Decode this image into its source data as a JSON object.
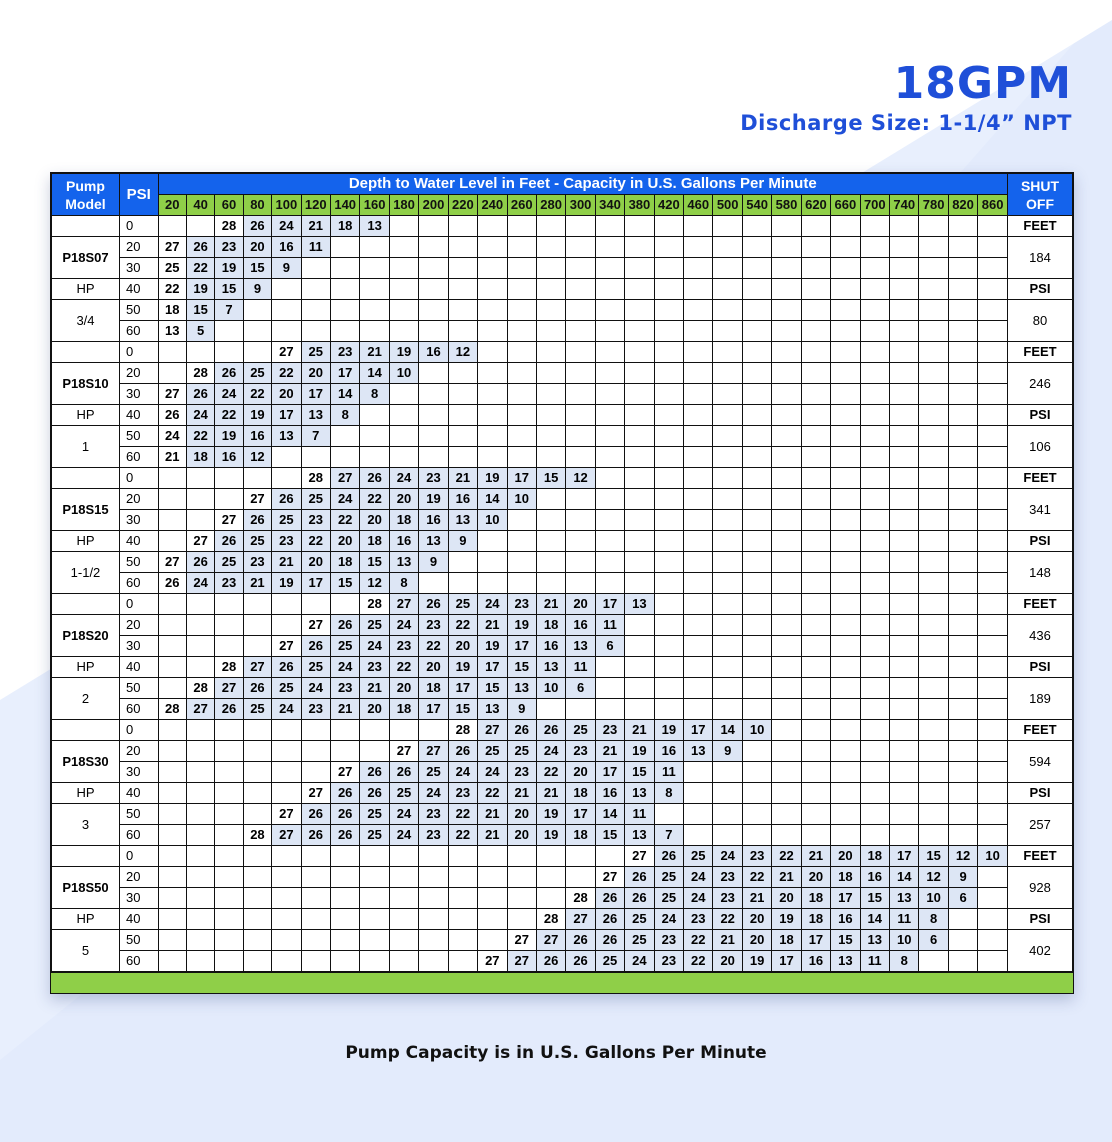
{
  "title": "18GPM",
  "subtitle": "Discharge Size: 1-1/4” NPT",
  "caption": "Pump Capacity is in U.S. Gallons Per Minute",
  "colors": {
    "header_blue": "#1463ec",
    "header_green": "#8fcf48",
    "title_blue": "#1f4fd8",
    "cell_fill": "#dde6f5"
  },
  "header": {
    "model_label": "Pump Model",
    "psi_label": "PSI",
    "depth_label": "Depth to Water Level in Feet - Capacity in U.S. Gallons Per Minute",
    "shut_label": "SHUT OFF",
    "depths": [
      "20",
      "40",
      "60",
      "80",
      "100",
      "120",
      "140",
      "160",
      "180",
      "200",
      "220",
      "240",
      "260",
      "280",
      "300",
      "340",
      "380",
      "420",
      "460",
      "500",
      "540",
      "580",
      "620",
      "660",
      "700",
      "740",
      "780",
      "820",
      "860"
    ]
  },
  "pumps": [
    {
      "model": "P18S07",
      "hp_label": "HP",
      "hp": "3/4",
      "shut": {
        "feet_label": "FEET",
        "feet": "184",
        "psi_label": "PSI",
        "psi": "80"
      },
      "rows": [
        {
          "psi": "0",
          "start": 2,
          "values": [
            "28",
            "26",
            "24",
            "21",
            "18",
            "13"
          ]
        },
        {
          "psi": "20",
          "start": 0,
          "values": [
            "27",
            "26",
            "23",
            "20",
            "16",
            "11"
          ]
        },
        {
          "psi": "30",
          "start": 0,
          "values": [
            "25",
            "22",
            "19",
            "15",
            "9"
          ]
        },
        {
          "psi": "40",
          "start": 0,
          "values": [
            "22",
            "19",
            "15",
            "9"
          ]
        },
        {
          "psi": "50",
          "start": 0,
          "values": [
            "18",
            "15",
            "7"
          ]
        },
        {
          "psi": "60",
          "start": 0,
          "values": [
            "13",
            "5"
          ]
        }
      ]
    },
    {
      "model": "P18S10",
      "hp_label": "HP",
      "hp": "1",
      "shut": {
        "feet_label": "FEET",
        "feet": "246",
        "psi_label": "PSI",
        "psi": "106"
      },
      "rows": [
        {
          "psi": "0",
          "start": 4,
          "values": [
            "27",
            "25",
            "23",
            "21",
            "19",
            "16",
            "12"
          ]
        },
        {
          "psi": "20",
          "start": 1,
          "values": [
            "28",
            "26",
            "25",
            "22",
            "20",
            "17",
            "14",
            "10"
          ]
        },
        {
          "psi": "30",
          "start": 0,
          "values": [
            "27",
            "26",
            "24",
            "22",
            "20",
            "17",
            "14",
            "8"
          ]
        },
        {
          "psi": "40",
          "start": 0,
          "values": [
            "26",
            "24",
            "22",
            "19",
            "17",
            "13",
            "8"
          ]
        },
        {
          "psi": "50",
          "start": 0,
          "values": [
            "24",
            "22",
            "19",
            "16",
            "13",
            "7"
          ]
        },
        {
          "psi": "60",
          "start": 0,
          "values": [
            "21",
            "18",
            "16",
            "12"
          ]
        }
      ]
    },
    {
      "model": "P18S15",
      "hp_label": "HP",
      "hp": "1-1/2",
      "shut": {
        "feet_label": "FEET",
        "feet": "341",
        "psi_label": "PSI",
        "psi": "148"
      },
      "rows": [
        {
          "psi": "0",
          "start": 5,
          "values": [
            "28",
            "27",
            "26",
            "24",
            "23",
            "21",
            "19",
            "17",
            "15",
            "12"
          ]
        },
        {
          "psi": "20",
          "start": 3,
          "values": [
            "27",
            "26",
            "25",
            "24",
            "22",
            "20",
            "19",
            "16",
            "14",
            "10"
          ]
        },
        {
          "psi": "30",
          "start": 2,
          "values": [
            "27",
            "26",
            "25",
            "23",
            "22",
            "20",
            "18",
            "16",
            "13",
            "10"
          ]
        },
        {
          "psi": "40",
          "start": 1,
          "values": [
            "27",
            "26",
            "25",
            "23",
            "22",
            "20",
            "18",
            "16",
            "13",
            "9"
          ]
        },
        {
          "psi": "50",
          "start": 0,
          "values": [
            "27",
            "26",
            "25",
            "23",
            "21",
            "20",
            "18",
            "15",
            "13",
            "9"
          ]
        },
        {
          "psi": "60",
          "start": 0,
          "values": [
            "26",
            "24",
            "23",
            "21",
            "19",
            "17",
            "15",
            "12",
            "8"
          ]
        }
      ]
    },
    {
      "model": "P18S20",
      "hp_label": "HP",
      "hp": "2",
      "shut": {
        "feet_label": "FEET",
        "feet": "436",
        "psi_label": "PSI",
        "psi": "189"
      },
      "rows": [
        {
          "psi": "0",
          "start": 7,
          "values": [
            "28",
            "27",
            "26",
            "25",
            "24",
            "23",
            "21",
            "20",
            "17",
            "13"
          ]
        },
        {
          "psi": "20",
          "start": 5,
          "values": [
            "27",
            "26",
            "25",
            "24",
            "23",
            "22",
            "21",
            "19",
            "18",
            "16",
            "11"
          ]
        },
        {
          "psi": "30",
          "start": 4,
          "values": [
            "27",
            "26",
            "25",
            "24",
            "23",
            "22",
            "20",
            "19",
            "17",
            "16",
            "13",
            "6"
          ]
        },
        {
          "psi": "40",
          "start": 2,
          "values": [
            "28",
            "27",
            "26",
            "25",
            "24",
            "23",
            "22",
            "20",
            "19",
            "17",
            "15",
            "13",
            "11"
          ]
        },
        {
          "psi": "50",
          "start": 1,
          "values": [
            "28",
            "27",
            "26",
            "25",
            "24",
            "23",
            "21",
            "20",
            "18",
            "17",
            "15",
            "13",
            "10",
            "6"
          ]
        },
        {
          "psi": "60",
          "start": 0,
          "values": [
            "28",
            "27",
            "26",
            "25",
            "24",
            "23",
            "21",
            "20",
            "18",
            "17",
            "15",
            "13",
            "9"
          ]
        }
      ]
    },
    {
      "model": "P18S30",
      "hp_label": "HP",
      "hp": "3",
      "shut": {
        "feet_label": "FEET",
        "feet": "594",
        "psi_label": "PSI",
        "psi": "257"
      },
      "rows": [
        {
          "psi": "0",
          "start": 10,
          "values": [
            "28",
            "27",
            "26",
            "26",
            "25",
            "23",
            "21",
            "19",
            "17",
            "14",
            "10"
          ]
        },
        {
          "psi": "20",
          "start": 8,
          "values": [
            "27",
            "27",
            "26",
            "25",
            "25",
            "24",
            "23",
            "21",
            "19",
            "16",
            "13",
            "9"
          ]
        },
        {
          "psi": "30",
          "start": 6,
          "values": [
            "27",
            "26",
            "26",
            "25",
            "24",
            "24",
            "23",
            "22",
            "20",
            "17",
            "15",
            "11"
          ]
        },
        {
          "psi": "40",
          "start": 5,
          "values": [
            "27",
            "26",
            "26",
            "25",
            "24",
            "23",
            "22",
            "21",
            "21",
            "18",
            "16",
            "13",
            "8"
          ]
        },
        {
          "psi": "50",
          "start": 4,
          "values": [
            "27",
            "26",
            "26",
            "25",
            "24",
            "23",
            "22",
            "21",
            "20",
            "19",
            "17",
            "14",
            "11"
          ]
        },
        {
          "psi": "60",
          "start": 3,
          "values": [
            "28",
            "27",
            "26",
            "26",
            "25",
            "24",
            "23",
            "22",
            "21",
            "20",
            "19",
            "18",
            "15",
            "13",
            "7"
          ]
        }
      ]
    },
    {
      "model": "P18S50",
      "hp_label": "HP",
      "hp": "5",
      "shut": {
        "feet_label": "FEET",
        "feet": "928",
        "psi_label": "PSI",
        "psi": "402"
      },
      "rows": [
        {
          "psi": "0",
          "start": 16,
          "values": [
            "27",
            "26",
            "25",
            "24",
            "23",
            "22",
            "21",
            "20",
            "18",
            "17",
            "15",
            "12",
            "10"
          ]
        },
        {
          "psi": "20",
          "start": 15,
          "values": [
            "27",
            "26",
            "25",
            "24",
            "23",
            "22",
            "21",
            "20",
            "18",
            "16",
            "14",
            "12",
            "9"
          ]
        },
        {
          "psi": "30",
          "start": 14,
          "values": [
            "28",
            "26",
            "26",
            "25",
            "24",
            "23",
            "21",
            "20",
            "18",
            "17",
            "15",
            "13",
            "10",
            "6"
          ]
        },
        {
          "psi": "40",
          "start": 13,
          "values": [
            "28",
            "27",
            "26",
            "25",
            "24",
            "23",
            "22",
            "20",
            "19",
            "18",
            "16",
            "14",
            "11",
            "8"
          ]
        },
        {
          "psi": "50",
          "start": 12,
          "values": [
            "27",
            "27",
            "26",
            "26",
            "25",
            "23",
            "22",
            "21",
            "20",
            "18",
            "17",
            "15",
            "13",
            "10",
            "6"
          ]
        },
        {
          "psi": "60",
          "start": 11,
          "values": [
            "27",
            "27",
            "26",
            "26",
            "25",
            "24",
            "23",
            "22",
            "20",
            "19",
            "17",
            "16",
            "13",
            "11",
            "8"
          ]
        }
      ]
    }
  ]
}
